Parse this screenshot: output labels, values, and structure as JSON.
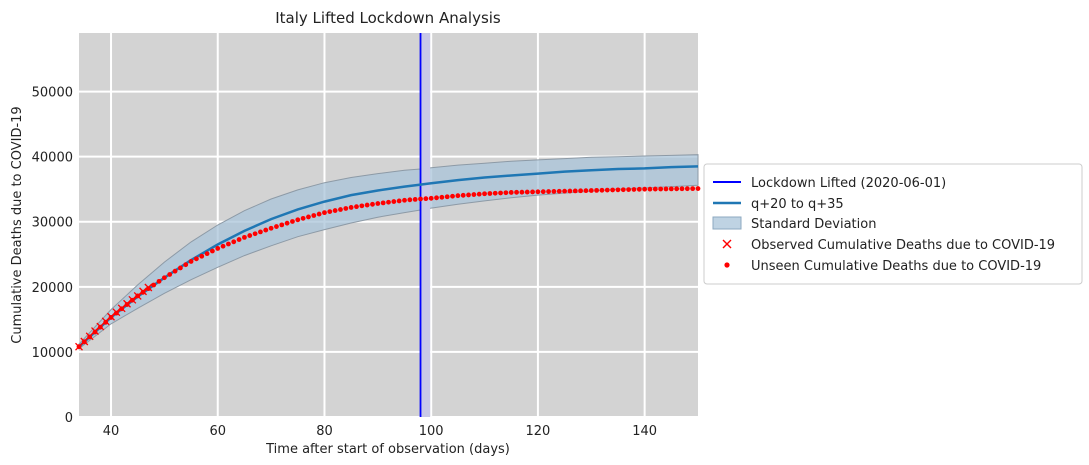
{
  "chart_data": {
    "type": "line",
    "title": "Italy Lifted Lockdown Analysis",
    "xlabel": "Time after start of observation (days)",
    "ylabel": "Cumulative Deaths due to COVID-19",
    "xlim": [
      34,
      150
    ],
    "ylim": [
      0,
      59000
    ],
    "x_ticks": [
      40,
      60,
      80,
      100,
      120,
      140
    ],
    "y_ticks": [
      0,
      10000,
      20000,
      30000,
      40000,
      50000
    ],
    "grid": true,
    "legend_position": "right",
    "lockdown_lifted_x": 98,
    "legend": [
      "Lockdown Lifted (2020-06-01)",
      "q+20 to q+35",
      "Standard Deviation",
      "Observed Cumulative Deaths due to COVID-19",
      "Unseen Cumulative Deaths due to COVID-19"
    ],
    "series": [
      {
        "name": "q+20 to q+35",
        "kind": "line",
        "color": "#1f77b4",
        "x": [
          34,
          40,
          45,
          50,
          55,
          60,
          65,
          70,
          75,
          80,
          85,
          90,
          95,
          98,
          100,
          105,
          110,
          115,
          120,
          125,
          130,
          135,
          140,
          145,
          150
        ],
        "y": [
          10800,
          15300,
          18500,
          21400,
          24100,
          26500,
          28600,
          30400,
          31900,
          33100,
          34100,
          34800,
          35400,
          35700,
          35900,
          36400,
          36800,
          37100,
          37400,
          37700,
          37900,
          38100,
          38200,
          38400,
          38500
        ]
      },
      {
        "name": "Standard Deviation",
        "kind": "band",
        "color": "#aac4d9",
        "x": [
          34,
          40,
          45,
          50,
          55,
          60,
          65,
          70,
          75,
          80,
          85,
          90,
          95,
          98,
          100,
          105,
          110,
          115,
          120,
          125,
          130,
          135,
          140,
          145,
          150
        ],
        "lower": [
          10500,
          14300,
          16700,
          19000,
          21100,
          23000,
          24800,
          26300,
          27700,
          28800,
          29800,
          30700,
          31400,
          31800,
          32100,
          32700,
          33200,
          33700,
          34100,
          34400,
          34700,
          35000,
          35200,
          35400,
          35600
        ],
        "upper": [
          11200,
          16500,
          20300,
          23800,
          26900,
          29500,
          31700,
          33500,
          34900,
          36000,
          36800,
          37400,
          37900,
          38100,
          38300,
          38700,
          39000,
          39300,
          39500,
          39700,
          39900,
          40000,
          40100,
          40200,
          40300
        ]
      },
      {
        "name": "Observed Cumulative Deaths due to COVID-19",
        "kind": "marker-x",
        "color": "#ff0000",
        "x": [
          34,
          35,
          36,
          37,
          38,
          39,
          40,
          41,
          42,
          43,
          44,
          45,
          46,
          47
        ],
        "y": [
          10800,
          11600,
          12400,
          13200,
          13900,
          14700,
          15400,
          16100,
          16700,
          17400,
          18000,
          18600,
          19300,
          19900
        ]
      },
      {
        "name": "Unseen Cumulative Deaths due to COVID-19",
        "kind": "marker-dot",
        "color": "#ff0000",
        "x": [
          34,
          40,
          45,
          50,
          55,
          60,
          65,
          70,
          75,
          80,
          85,
          90,
          95,
          98,
          100,
          105,
          110,
          115,
          120,
          125,
          130,
          135,
          140,
          145,
          150
        ],
        "y": [
          10800,
          15300,
          18600,
          21400,
          23900,
          25900,
          27600,
          29000,
          30300,
          31400,
          32200,
          32800,
          33300,
          33500,
          33600,
          34000,
          34300,
          34500,
          34600,
          34700,
          34800,
          34900,
          35000,
          35050,
          35100
        ]
      }
    ]
  }
}
